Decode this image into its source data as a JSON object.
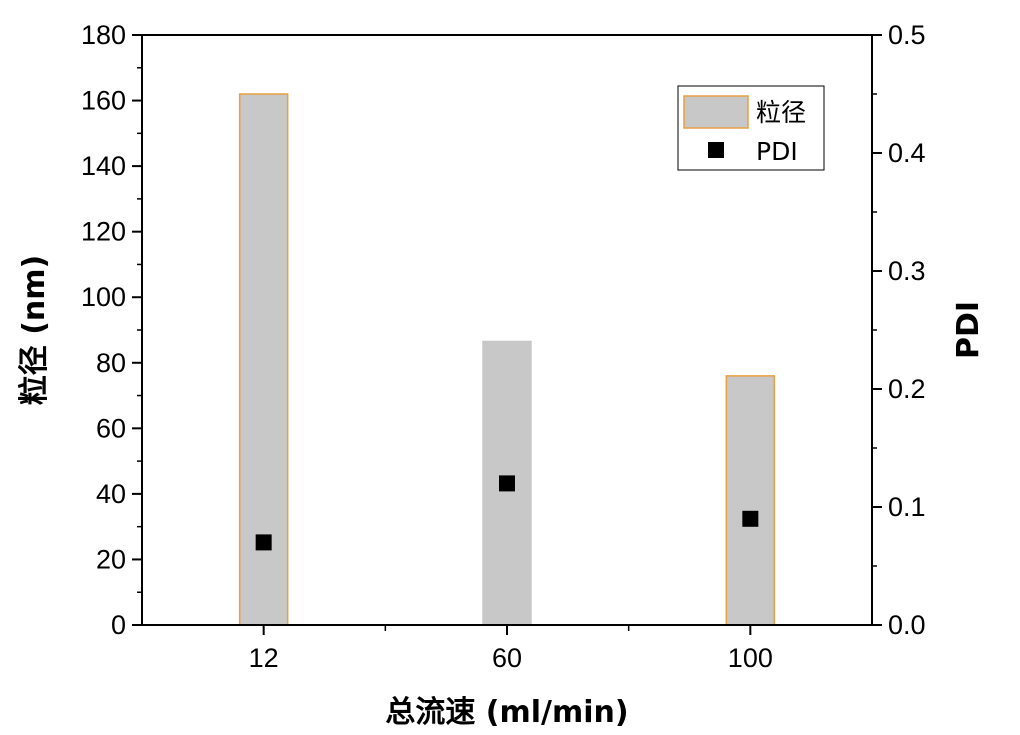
{
  "chart_data": {
    "type": "bar",
    "categories": [
      "12",
      "60",
      "100"
    ],
    "x_positions": [
      1,
      2,
      3
    ],
    "xlim": [
      0.5,
      3.5
    ],
    "xlabel": "总流速 (ml/min)",
    "y_left": {
      "label": "粒径 (nm)",
      "lim": [
        0,
        180
      ],
      "ticks": [
        0,
        20,
        40,
        60,
        80,
        100,
        120,
        140,
        160,
        180
      ]
    },
    "y_right": {
      "label": "PDI",
      "lim": [
        0,
        0.5
      ],
      "ticks": [
        "0.0",
        "0.1",
        "0.2",
        "0.3",
        "0.4",
        "0.5"
      ]
    },
    "series": [
      {
        "name": "粒径",
        "type": "bar",
        "axis": "left",
        "values": [
          162,
          86.5,
          76
        ],
        "fill": "#c8c8c8",
        "edge_colors": [
          "#e8a040",
          "#c8c8c8",
          "#e8a040"
        ]
      },
      {
        "name": "PDI",
        "type": "scatter",
        "axis": "right",
        "values": [
          0.07,
          0.12,
          0.09
        ],
        "color": "#000000",
        "marker": "square"
      }
    ],
    "legend": {
      "position": "top-right"
    },
    "grid": false
  }
}
